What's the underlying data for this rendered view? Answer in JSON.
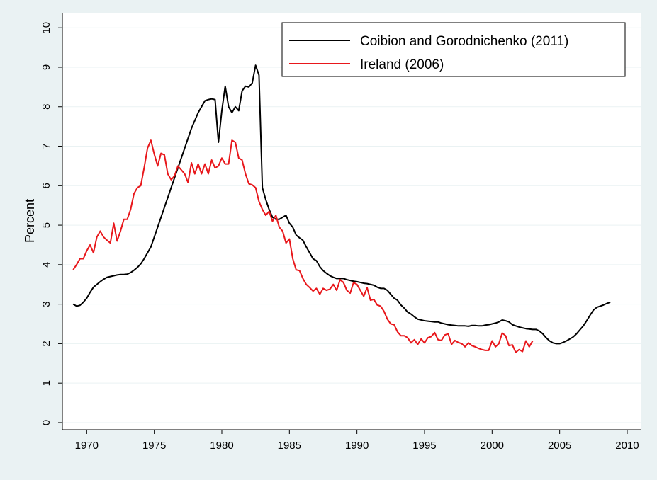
{
  "chart_data": {
    "type": "line",
    "ylabel": "Percent",
    "x": [
      1969,
      1969.25,
      1969.5,
      1969.75,
      1970,
      1970.25,
      1970.5,
      1970.75,
      1971,
      1971.25,
      1971.5,
      1971.75,
      1972,
      1972.25,
      1972.5,
      1972.75,
      1973,
      1973.25,
      1973.5,
      1973.75,
      1974,
      1974.25,
      1974.5,
      1974.75,
      1975,
      1975.25,
      1975.5,
      1975.75,
      1976,
      1976.25,
      1976.5,
      1976.75,
      1977,
      1977.25,
      1977.5,
      1977.75,
      1978,
      1978.25,
      1978.5,
      1978.75,
      1979,
      1979.25,
      1979.5,
      1979.75,
      1980,
      1980.25,
      1980.5,
      1980.75,
      1981,
      1981.25,
      1981.5,
      1981.75,
      1982,
      1982.25,
      1982.5,
      1982.75,
      1983,
      1983.25,
      1983.5,
      1983.75,
      1984,
      1984.25,
      1984.5,
      1984.75,
      1985,
      1985.25,
      1985.5,
      1985.75,
      1986,
      1986.25,
      1986.5,
      1986.75,
      1987,
      1987.25,
      1987.5,
      1987.75,
      1988,
      1988.25,
      1988.5,
      1988.75,
      1989,
      1989.25,
      1989.5,
      1989.75,
      1990,
      1990.25,
      1990.5,
      1990.75,
      1991,
      1991.25,
      1991.5,
      1991.75,
      1992,
      1992.25,
      1992.5,
      1992.75,
      1993,
      1993.25,
      1993.5,
      1993.75,
      1994,
      1994.25,
      1994.5,
      1994.75,
      1995,
      1995.25,
      1995.5,
      1995.75,
      1996,
      1996.25,
      1996.5,
      1996.75,
      1997,
      1997.25,
      1997.5,
      1997.75,
      1998,
      1998.25,
      1998.5,
      1998.75,
      1999,
      1999.25,
      1999.5,
      1999.75,
      2000,
      2000.25,
      2000.5,
      2000.75,
      2001,
      2001.25,
      2001.5,
      2001.75,
      2002,
      2002.25,
      2002.5,
      2002.75,
      2003,
      2003.25,
      2003.5,
      2003.75,
      2004,
      2004.25,
      2004.5,
      2004.75,
      2005,
      2005.25,
      2005.5,
      2005.75,
      2006,
      2006.25,
      2006.5,
      2006.75,
      2007,
      2007.25,
      2007.5,
      2007.75,
      2008,
      2008.25,
      2008.5,
      2008.75
    ],
    "series": [
      {
        "name": "Coibion and Gorodnichenko (2011)",
        "color": "#000000",
        "values": [
          3.0,
          2.95,
          2.97,
          3.05,
          3.15,
          3.3,
          3.43,
          3.5,
          3.57,
          3.63,
          3.68,
          3.7,
          3.72,
          3.74,
          3.75,
          3.75,
          3.76,
          3.8,
          3.86,
          3.93,
          4.02,
          4.15,
          4.3,
          4.45,
          4.7,
          4.95,
          5.2,
          5.45,
          5.7,
          5.95,
          6.2,
          6.45,
          6.7,
          6.95,
          7.2,
          7.45,
          7.65,
          7.85,
          8.0,
          8.15,
          8.18,
          8.2,
          8.18,
          7.1,
          7.9,
          8.52,
          8.0,
          7.85,
          8.0,
          7.9,
          8.4,
          8.52,
          8.5,
          8.6,
          9.05,
          8.8,
          5.95,
          5.65,
          5.4,
          5.2,
          5.15,
          5.15,
          5.2,
          5.25,
          5.05,
          4.95,
          4.75,
          4.68,
          4.62,
          4.45,
          4.3,
          4.15,
          4.1,
          3.95,
          3.85,
          3.78,
          3.72,
          3.68,
          3.65,
          3.65,
          3.65,
          3.62,
          3.6,
          3.58,
          3.57,
          3.55,
          3.53,
          3.52,
          3.5,
          3.48,
          3.43,
          3.4,
          3.4,
          3.35,
          3.25,
          3.15,
          3.1,
          2.98,
          2.9,
          2.8,
          2.75,
          2.68,
          2.62,
          2.6,
          2.58,
          2.57,
          2.56,
          2.55,
          2.55,
          2.52,
          2.5,
          2.48,
          2.47,
          2.46,
          2.45,
          2.45,
          2.45,
          2.44,
          2.46,
          2.46,
          2.45,
          2.45,
          2.47,
          2.48,
          2.5,
          2.52,
          2.55,
          2.6,
          2.58,
          2.55,
          2.48,
          2.45,
          2.42,
          2.4,
          2.38,
          2.37,
          2.36,
          2.36,
          2.32,
          2.25,
          2.15,
          2.07,
          2.02,
          2.0,
          2.0,
          2.03,
          2.07,
          2.12,
          2.17,
          2.25,
          2.35,
          2.45,
          2.58,
          2.72,
          2.85,
          2.92,
          2.95,
          2.98,
          3.02,
          3.05
        ]
      },
      {
        "name": "Ireland (2006)",
        "color": "#e8171b",
        "values": [
          3.87,
          4.0,
          4.15,
          4.15,
          4.35,
          4.5,
          4.3,
          4.7,
          4.85,
          4.7,
          4.62,
          4.55,
          5.05,
          4.6,
          4.85,
          5.15,
          5.15,
          5.4,
          5.8,
          5.95,
          6.0,
          6.45,
          6.95,
          7.15,
          6.8,
          6.5,
          6.82,
          6.78,
          6.3,
          6.15,
          6.25,
          6.5,
          6.4,
          6.3,
          6.08,
          6.58,
          6.3,
          6.55,
          6.3,
          6.55,
          6.3,
          6.65,
          6.45,
          6.5,
          6.7,
          6.55,
          6.55,
          7.15,
          7.1,
          6.7,
          6.65,
          6.3,
          6.05,
          6.02,
          5.95,
          5.6,
          5.4,
          5.25,
          5.35,
          5.1,
          5.25,
          4.95,
          4.85,
          4.55,
          4.65,
          4.15,
          3.87,
          3.85,
          3.65,
          3.5,
          3.42,
          3.33,
          3.4,
          3.25,
          3.4,
          3.35,
          3.38,
          3.5,
          3.35,
          3.62,
          3.55,
          3.35,
          3.28,
          3.55,
          3.5,
          3.35,
          3.2,
          3.42,
          3.1,
          3.12,
          2.98,
          2.95,
          2.82,
          2.62,
          2.5,
          2.48,
          2.3,
          2.2,
          2.2,
          2.15,
          2.02,
          2.1,
          1.98,
          2.12,
          2.02,
          2.15,
          2.18,
          2.28,
          2.1,
          2.08,
          2.22,
          2.25,
          1.98,
          2.08,
          2.03,
          2.0,
          1.92,
          2.02,
          1.95,
          1.92,
          1.88,
          1.85,
          1.83,
          1.83,
          2.07,
          1.92,
          2.0,
          2.27,
          2.2,
          1.95,
          1.97,
          1.78,
          1.85,
          1.8,
          2.07,
          1.92,
          2.07,
          null,
          null,
          null,
          null,
          null,
          null,
          null,
          null,
          null,
          null,
          null,
          null,
          null,
          null,
          null,
          null,
          null,
          null,
          null,
          null,
          null,
          null,
          null
        ]
      }
    ],
    "xlim": [
      1968.2,
      2011.05
    ],
    "xticks": [
      1970,
      1975,
      1980,
      1985,
      1990,
      1995,
      2000,
      2005,
      2010
    ],
    "ylim": [
      -0.18,
      10.38
    ],
    "yticks": [
      0,
      1,
      2,
      3,
      4,
      5,
      6,
      7,
      8,
      9,
      10
    ],
    "grid": true,
    "legend": "upper right"
  }
}
